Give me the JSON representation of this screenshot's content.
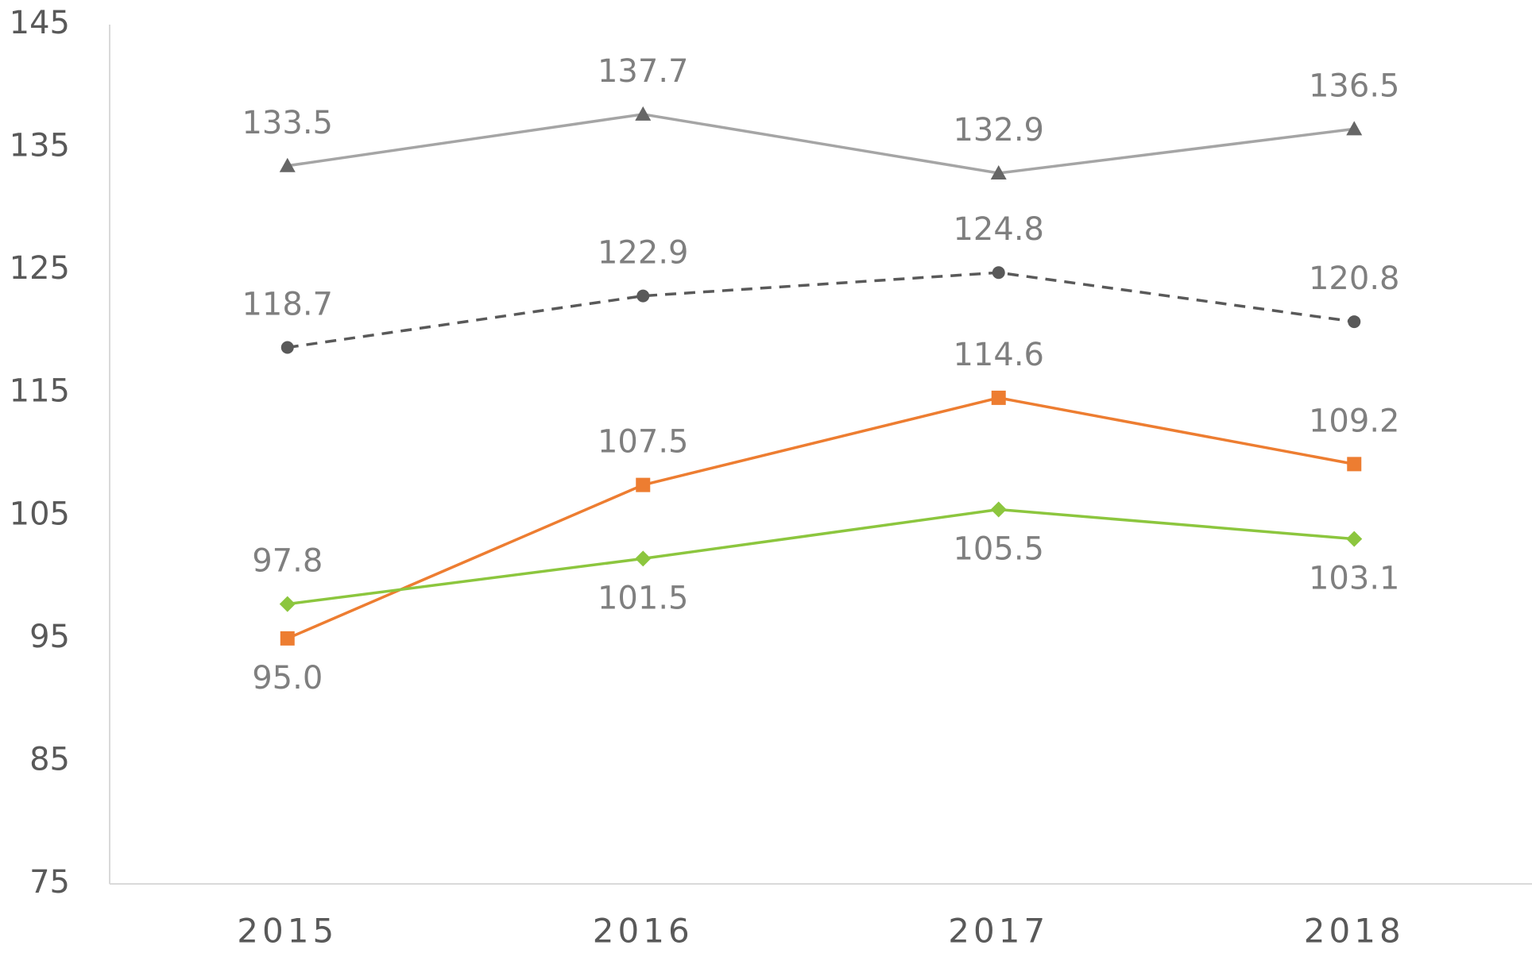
{
  "chart_data": {
    "type": "line",
    "categories": [
      "2015",
      "2016",
      "2017",
      "2018"
    ],
    "series": [
      {
        "color": "#a5a5a5",
        "marker": "triangle",
        "marker_color": "#666666",
        "dash": false,
        "values": [
          133.5,
          137.7,
          132.9,
          136.5
        ],
        "value_labels": [
          "133.5",
          "137.7",
          "132.9",
          "136.5"
        ]
      },
      {
        "color": "#595959",
        "marker": "circle",
        "marker_color": "#595959",
        "dash": true,
        "values": [
          118.7,
          122.9,
          124.8,
          120.8
        ],
        "value_labels": [
          "118.7",
          "122.9",
          "124.8",
          "120.8"
        ]
      },
      {
        "color": "#ed7d31",
        "marker": "square",
        "marker_color": "#ed7d31",
        "dash": false,
        "values": [
          95.0,
          107.5,
          114.6,
          109.2
        ],
        "value_labels": [
          "95.0",
          "107.5",
          "114.6",
          "109.2"
        ]
      },
      {
        "color": "#8cc63e",
        "marker": "diamond",
        "marker_color": "#8cc63e",
        "dash": false,
        "values": [
          97.8,
          101.5,
          105.5,
          103.1
        ],
        "value_labels": [
          "97.8",
          "101.5",
          "105.5",
          "103.1"
        ]
      }
    ],
    "ylim": [
      75,
      145
    ],
    "yticks": [
      75,
      85,
      95,
      105,
      115,
      125,
      135,
      145
    ],
    "grid": false
  }
}
